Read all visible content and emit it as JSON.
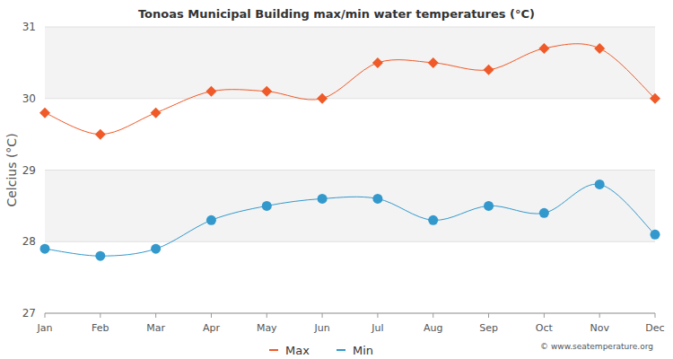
{
  "chart_data": {
    "type": "line",
    "title": "Tonoas Municipal Building max/min water temperatures (°C)",
    "y_label": "Celcius (°C)",
    "source": "© www.seatemperature.org",
    "categories": [
      "Jan",
      "Feb",
      "Mar",
      "Apr",
      "May",
      "Jun",
      "Jul",
      "Aug",
      "Sep",
      "Oct",
      "Nov",
      "Dec"
    ],
    "series": [
      {
        "name": "Max",
        "color": "#f05a28",
        "marker": "diamond",
        "line_style": "smooth",
        "values": [
          29.8,
          29.5,
          29.8,
          30.1,
          30.1,
          30.0,
          30.5,
          30.5,
          30.4,
          30.7,
          30.7,
          30.0
        ]
      },
      {
        "name": "Min",
        "color": "#3399cc",
        "marker": "circle",
        "line_style": "smooth",
        "values": [
          27.9,
          27.8,
          27.9,
          28.3,
          28.5,
          28.6,
          28.6,
          28.3,
          28.5,
          28.4,
          28.8,
          28.1
        ]
      }
    ],
    "ylim": [
      27,
      31
    ],
    "yticks": [
      27,
      28,
      29,
      30,
      31
    ],
    "grid": true,
    "legend": "bottom"
  }
}
